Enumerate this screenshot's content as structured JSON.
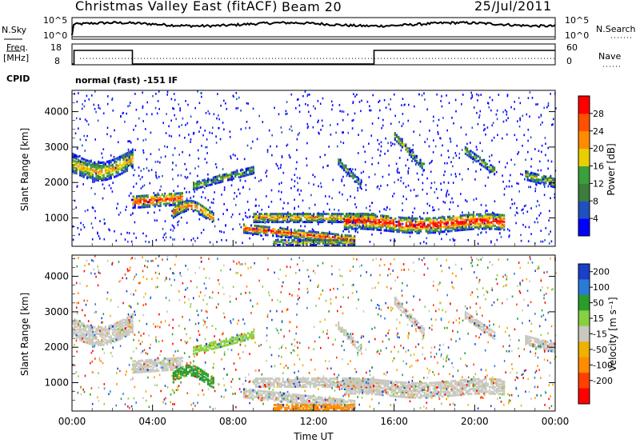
{
  "header": {
    "station": "Christmas Valley East (fitACF)",
    "beam": "Beam 20",
    "date": "25/Jul/2011"
  },
  "top_panels": {
    "nsky_label": "N.Sky",
    "nsearch_label": "N.Search",
    "noise_ticks": [
      "10^5",
      "10^0"
    ],
    "freq_label_1": "Freq.",
    "freq_label_2": "[MHz]",
    "freq_ticks": [
      "18",
      "8"
    ],
    "nave_label": "Nave",
    "nave_ticks": [
      "60",
      "0"
    ],
    "cpid_label": "CPID",
    "cpid_text": "normal (fast) -151 IF"
  },
  "chart_data": [
    {
      "type": "heatmap",
      "name": "power",
      "ylabel": "Slant Range [km]",
      "yticks": [
        1000,
        2000,
        3000,
        4000
      ],
      "ylim": [
        200,
        4600
      ],
      "xlim_hours": [
        0,
        24
      ],
      "colorbar_label": "Power [dB]",
      "colorbar_ticks": [
        "4",
        "8",
        "12",
        "16",
        "20",
        "24",
        "28"
      ],
      "colorbar_colors": [
        "#0000ff",
        "#2050c0",
        "#3b7d3b",
        "#3aa03a",
        "#e8d000",
        "#ff8c00",
        "#ff5000",
        "#ff0000"
      ]
    },
    {
      "type": "heatmap",
      "name": "velocity",
      "ylabel": "Slant Range [km]",
      "yticks": [
        1000,
        2000,
        3000,
        4000
      ],
      "ylim": [
        200,
        4600
      ],
      "xlim_hours": [
        0,
        24
      ],
      "xlabel": "Time UT",
      "xticks": [
        "00:00",
        "04:00",
        "08:00",
        "12:00",
        "16:00",
        "20:00",
        "00:00"
      ],
      "colorbar_label": "Velocity [m s⁻¹]",
      "colorbar_ticks": [
        "200",
        "100",
        "50",
        "15",
        "-15",
        "-50",
        "-100",
        "-200"
      ],
      "colorbar_colors": [
        "#1a3fc8",
        "#2a7ad8",
        "#2a9c2a",
        "#88d040",
        "#c8c8c0",
        "#f0b000",
        "#ff8c00",
        "#ff4000",
        "#ff0000"
      ]
    }
  ],
  "frequency_series": {
    "x_hours": [
      0,
      0.1,
      0.1,
      3.0,
      3.0,
      15.0,
      15.0,
      24.0
    ],
    "mhz": [
      8,
      8,
      18,
      18,
      8,
      8,
      18,
      18
    ]
  },
  "nave_level": 0.66
}
